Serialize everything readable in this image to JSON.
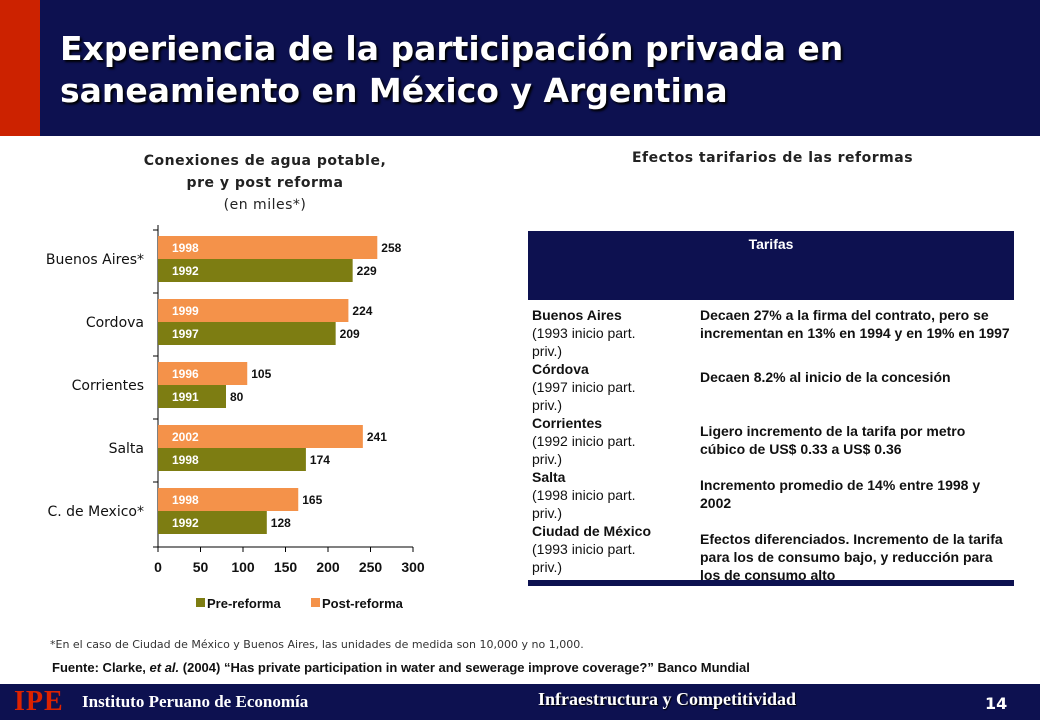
{
  "header": {
    "title": "Experiencia de la participación privada en saneamiento en México y Argentina"
  },
  "left_panel": {
    "title_line1": "Conexiones de agua potable,",
    "title_line2": "pre y post reforma",
    "subtitle": "(en miles*)"
  },
  "right_panel": {
    "title": "Efectos tarifarios de las reformas"
  },
  "chart_data": {
    "type": "bar",
    "orientation": "horizontal",
    "categories": [
      "Buenos Aires*",
      "Cordova",
      "Corrientes",
      "Salta",
      "C. de Mexico*"
    ],
    "series": [
      {
        "name": "Post-reforma",
        "color": "#f4924a",
        "values": [
          258,
          224,
          105,
          241,
          165
        ],
        "year_labels": [
          "1998",
          "1999",
          "1996",
          "2002",
          "1998"
        ]
      },
      {
        "name": "Pre-reforma",
        "color": "#7d7d12",
        "values": [
          229,
          209,
          80,
          174,
          128
        ],
        "year_labels": [
          "1992",
          "1997",
          "1991",
          "1998",
          "1992"
        ]
      }
    ],
    "legend": [
      "Pre-reforma",
      "Post-reforma"
    ],
    "xlim": [
      0,
      300
    ],
    "xticks": [
      0,
      50,
      100,
      150,
      200,
      250,
      300
    ],
    "grid": false,
    "legend_position": "bottom"
  },
  "tariff_table": {
    "header": "Tarifas",
    "rows": [
      {
        "city": "Buenos Aires",
        "note_line1": "(1993 inicio part.",
        "note_line2": "priv.)",
        "effect": "Decaen 27% a la firma del contrato, pero se incrementan en 13% en 1994 y en 19% en 1997"
      },
      {
        "city": "Córdova",
        "note_line1": "(1997 inicio part.",
        "note_line2": "priv.)",
        "effect": "Decaen 8.2% al inicio de la concesión"
      },
      {
        "city": "Corrientes",
        "note_line1": "(1992 inicio part.",
        "note_line2": "priv.)",
        "effect": "Ligero incremento de la tarifa por metro cúbico de US$ 0.33 a US$ 0.36"
      },
      {
        "city": "Salta",
        "note_line1": "(1998 inicio part.",
        "note_line2": "priv.)",
        "effect": "Incremento promedio de 14% entre 1998 y 2002"
      },
      {
        "city": "Ciudad de México",
        "note_line1": "(1993 inicio part.",
        "note_line2": "priv.)",
        "effect": "Efectos diferenciados. Incremento de la tarifa para los de consumo bajo, y reducción para los de consumo alto"
      }
    ]
  },
  "footnote": "*En el caso de Ciudad de México y Buenos Aires, las unidades de medida son 10,000 y no 1,000.",
  "source": {
    "prefix": "Fuente: Clarke, ",
    "etal": "et al.",
    "rest": " (2004) “Has private participation in water and sewerage improve coverage?” Banco Mundial"
  },
  "footer": {
    "logo": "IPE",
    "institution": "Instituto Peruano de Economía",
    "section": "Infraestructura y Competitividad",
    "page_number": "14"
  },
  "colors": {
    "navy": "#0d1150",
    "red": "#cc2200",
    "post": "#f4924a",
    "pre": "#7d7d12"
  }
}
